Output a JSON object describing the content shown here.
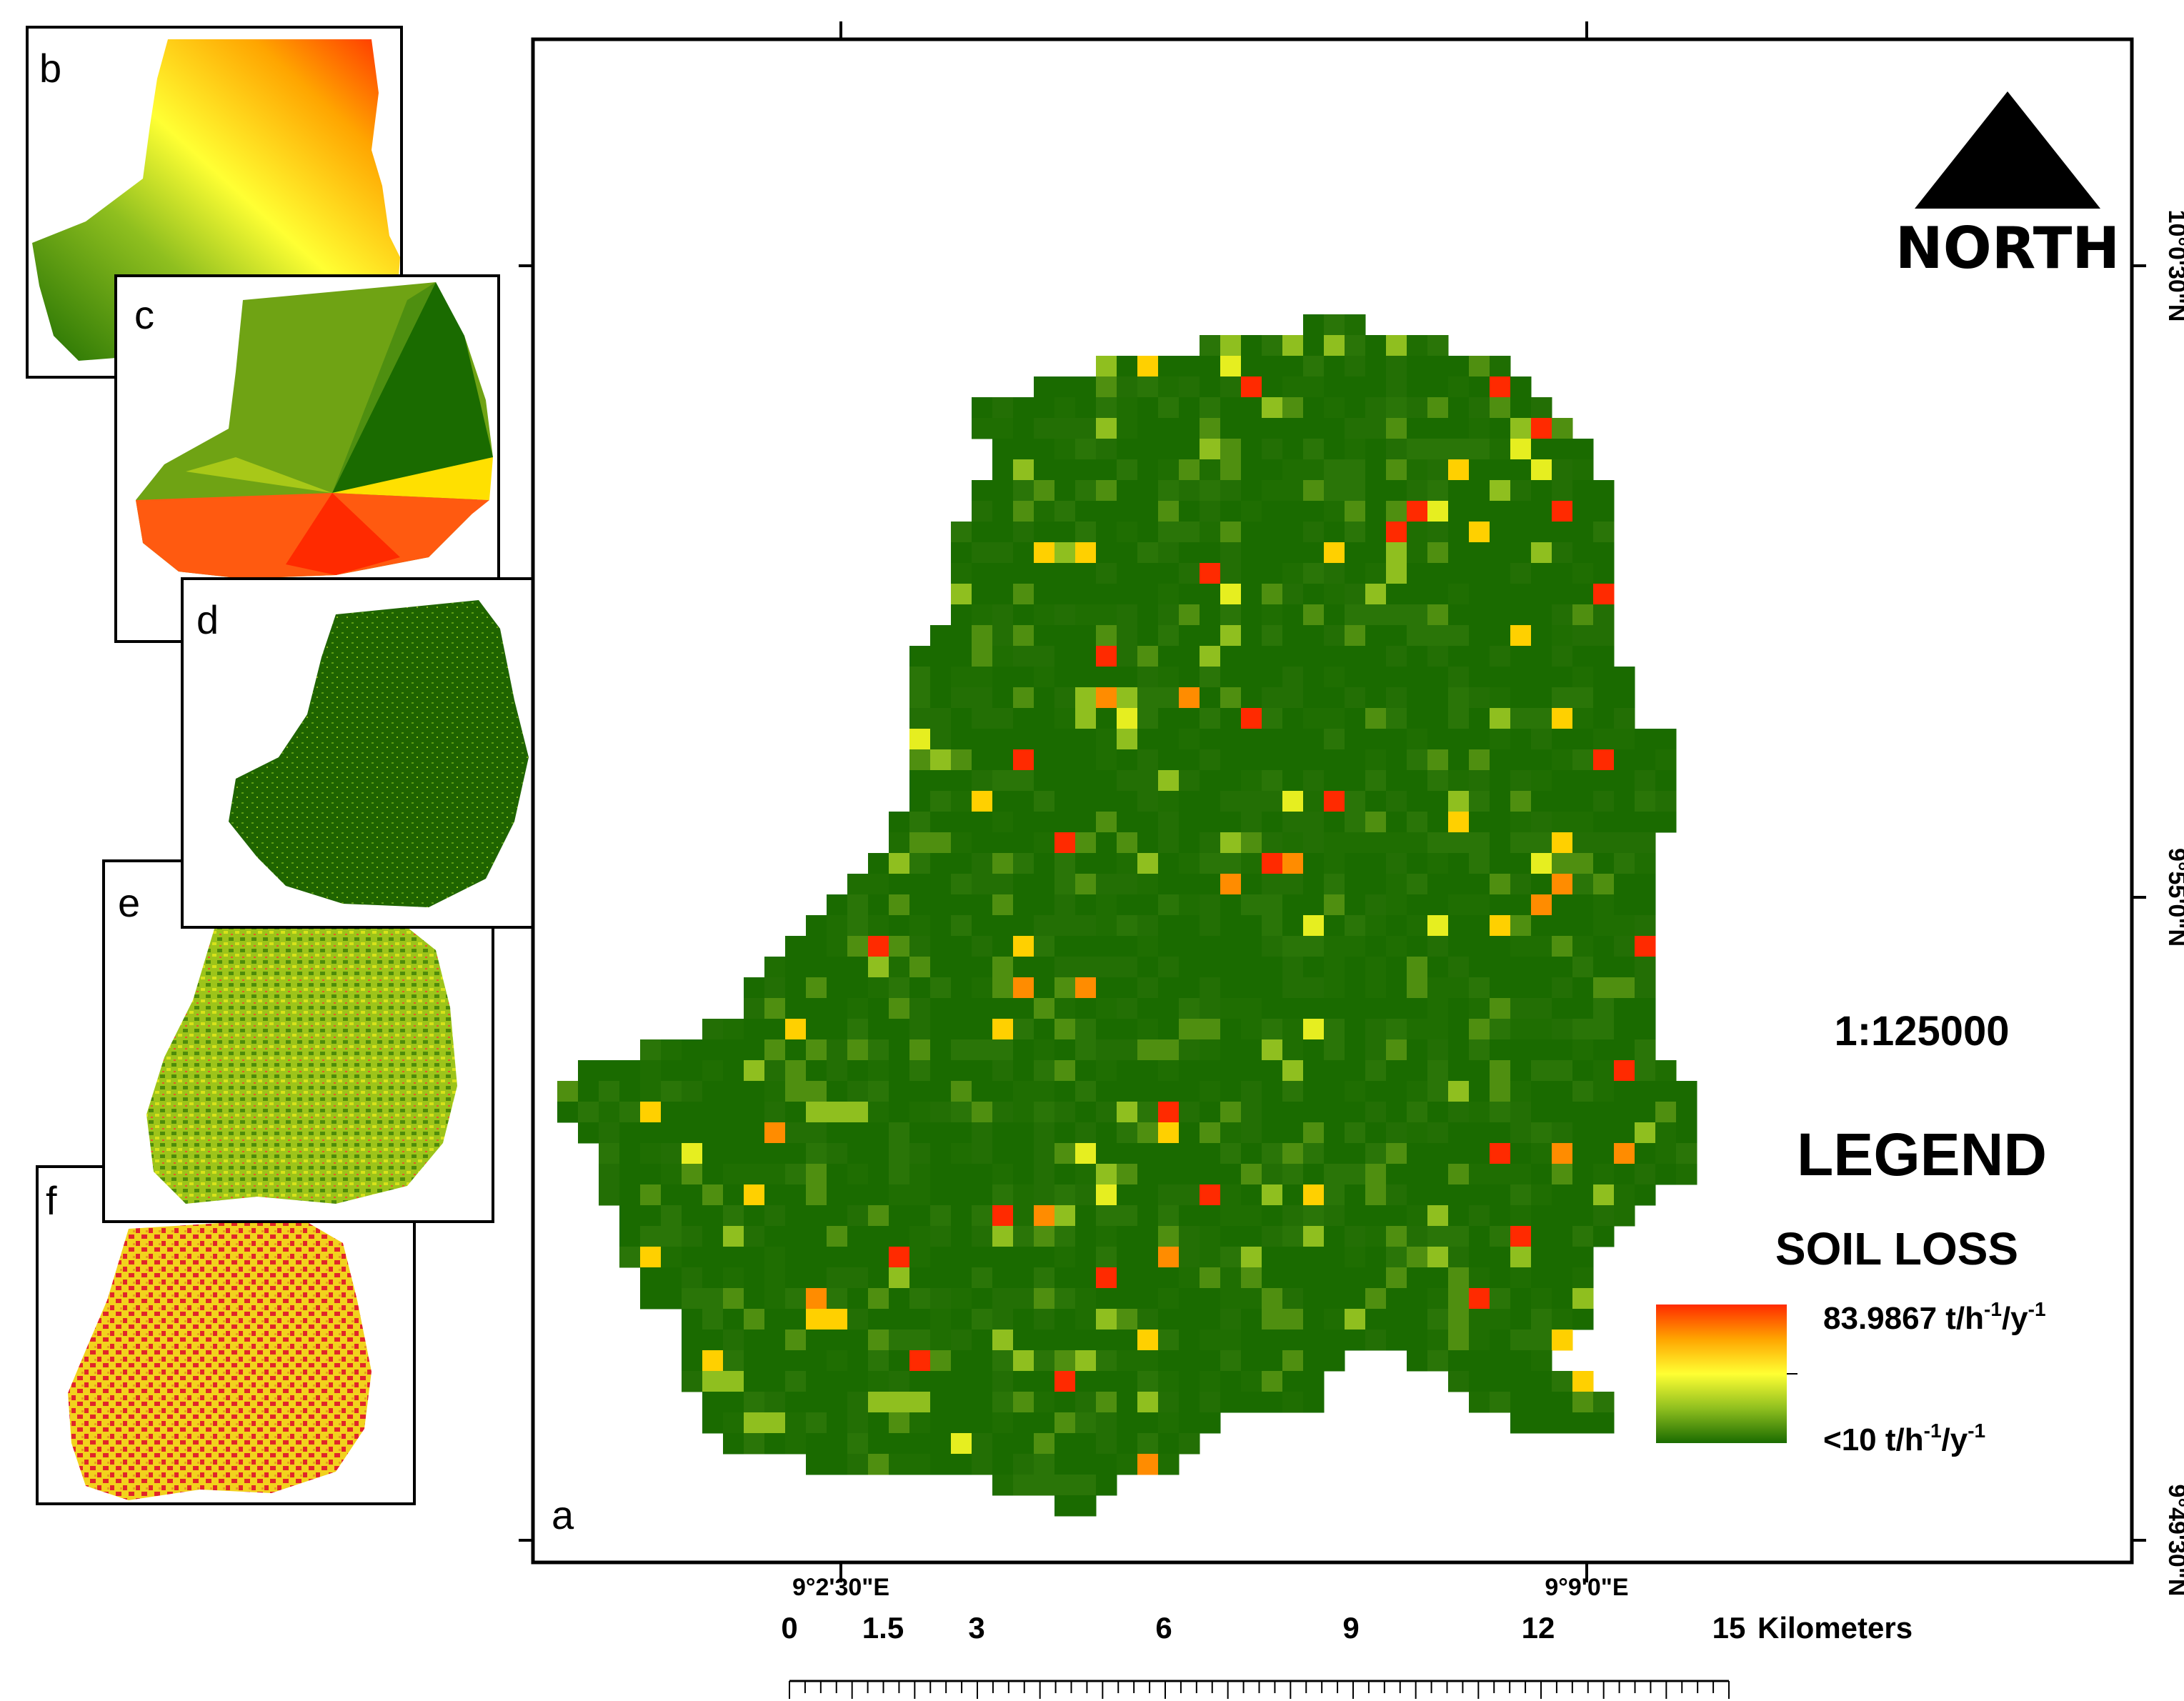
{
  "map": {
    "panel_labels": [
      "a",
      "b",
      "c",
      "d",
      "e",
      "f"
    ],
    "north_label": "NORTH",
    "scale_ratio": "1:125000",
    "legend_title": "LEGEND",
    "legend_subtitle": "SOIL LOSS",
    "legend_high": "83.9867 t/h",
    "legend_low": "<10 t/h",
    "unit_sup1": "-1",
    "unit_mid": "/y",
    "unit_sup2": "-1",
    "legend_colors": [
      "#ff2a00",
      "#ffa500",
      "#ffff33",
      "#8fbf1f",
      "#1a6b00"
    ],
    "coords": {
      "top_x1": "9°2'30\"E",
      "top_x2": "9°9'0\"E",
      "right_y1": "10°0'30\"N",
      "right_y2": "9°55'0\"N",
      "right_y3": "9°49'30\"N"
    },
    "scale_bar": {
      "ticks": [
        "0",
        "1.5",
        "3",
        "6",
        "9",
        "12",
        "15"
      ],
      "unit": "Kilometers"
    }
  }
}
